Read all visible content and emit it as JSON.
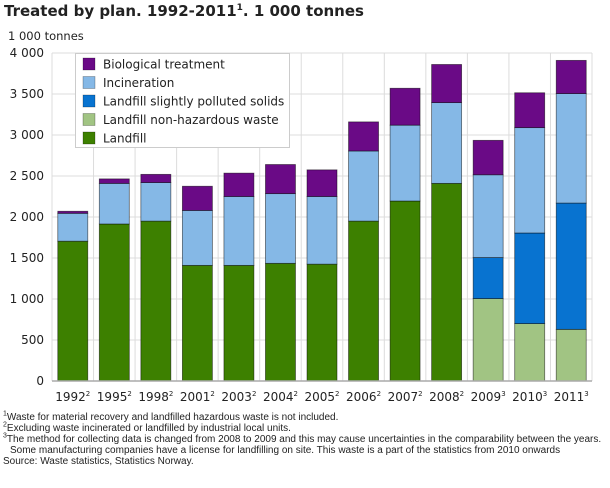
{
  "chart_data": {
    "type": "bar",
    "stacked": true,
    "title": "Treated by plan. 1992-2011",
    "title_sup": "1",
    "title_suffix": ". 1 000 tonnes",
    "ylabel": "1 000 tonnes",
    "ylim": [
      0,
      4000
    ],
    "yticks": [
      0,
      500,
      1000,
      1500,
      2000,
      2500,
      3000,
      3500,
      4000
    ],
    "ytick_labels": [
      "0",
      "500",
      "1 000",
      "1 500",
      "2 000",
      "2 500",
      "3 000",
      "3 500",
      "4 000"
    ],
    "grid": true,
    "legend_position": "top-left",
    "categories": [
      "1992",
      "1995",
      "1998",
      "2001",
      "2003",
      "2004",
      "2005",
      "2006",
      "2007",
      "2008",
      "2009",
      "2010",
      "2011"
    ],
    "category_sups": [
      "2",
      "2",
      "2",
      "2",
      "2",
      "2",
      "2",
      "2",
      "2",
      "2",
      "3",
      "3",
      "3"
    ],
    "series": [
      {
        "name": "Landfill",
        "color": "#3d8000",
        "values": [
          1705,
          1915,
          1950,
          1410,
          1410,
          1435,
          1425,
          1950,
          2195,
          2410,
          0,
          0,
          0
        ]
      },
      {
        "name": "Landfill non-hazardous waste",
        "color": "#a1c483",
        "values": [
          0,
          0,
          0,
          0,
          0,
          0,
          0,
          0,
          0,
          0,
          1005,
          700,
          630
        ]
      },
      {
        "name": "Landfill slightly polluted solids",
        "color": "#0873d0",
        "values": [
          0,
          0,
          0,
          0,
          0,
          0,
          0,
          0,
          0,
          0,
          500,
          1105,
          1540
        ]
      },
      {
        "name": "Incineration",
        "color": "#85b8e6",
        "values": [
          340,
          495,
          470,
          670,
          840,
          850,
          825,
          855,
          925,
          985,
          1010,
          1285,
          1335
        ]
      },
      {
        "name": "Biological treatment",
        "color": "#6a0a86",
        "values": [
          25,
          55,
          100,
          295,
          285,
          355,
          325,
          355,
          450,
          465,
          420,
          425,
          405
        ]
      }
    ]
  },
  "footnotes": [
    {
      "sup": "1",
      "text": "Waste for material recovery and landfilled hazardous waste is not included."
    },
    {
      "sup": "2",
      "text": "Excluding waste incinerated or landfilled by industrial local units."
    },
    {
      "sup": "3",
      "text": "The method for collecting data is changed from 2008 to 2009 and this may cause uncertainties in the comparability between the years. Some manufacturing companies have a license for landfilling on site. This waste is a part of the statistics from 2010 onwards"
    }
  ],
  "source": "Source: Waste statistics, Statistics Norway."
}
